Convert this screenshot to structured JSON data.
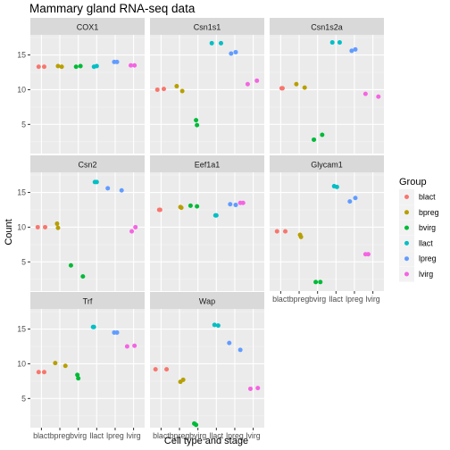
{
  "colors": {
    "blact": "#F8766D",
    "bpreg": "#B79F00",
    "bvirg": "#00BA38",
    "llact": "#00BFC4",
    "lpreg": "#619CFF",
    "lvirg": "#F564E3",
    "panel_bg": "#EBEBEB",
    "strip_bg": "#D9D9D9",
    "grid_major": "#FFFFFF"
  },
  "chart_data": {
    "type": "scatter",
    "title": "Mammary gland RNA-seq data",
    "xlabel": "Cell type and stage",
    "ylabel": "Count",
    "categories": [
      "blact",
      "bpreg",
      "bvirg",
      "llact",
      "lpreg",
      "lvirg"
    ],
    "y_ticks": [
      5,
      10,
      15
    ],
    "ylim": [
      0.8,
      17.9
    ],
    "legend": {
      "title": "Group",
      "position": "right",
      "entries": [
        "blact",
        "bpreg",
        "bvirg",
        "llact",
        "lpreg",
        "lvirg"
      ]
    },
    "grid": true,
    "facets": [
      {
        "name": "COX1",
        "points": [
          {
            "group": "blact",
            "x": 0.85,
            "y": 13.3
          },
          {
            "group": "blact",
            "x": 1.15,
            "y": 13.3
          },
          {
            "group": "bpreg",
            "x": 1.9,
            "y": 13.4
          },
          {
            "group": "bpreg",
            "x": 2.1,
            "y": 13.3
          },
          {
            "group": "bvirg",
            "x": 2.88,
            "y": 13.3
          },
          {
            "group": "bvirg",
            "x": 3.12,
            "y": 13.4
          },
          {
            "group": "llact",
            "x": 3.85,
            "y": 13.3
          },
          {
            "group": "llact",
            "x": 4.0,
            "y": 13.4
          },
          {
            "group": "lpreg",
            "x": 4.95,
            "y": 14.0
          },
          {
            "group": "lpreg",
            "x": 5.1,
            "y": 14.0
          },
          {
            "group": "lvirg",
            "x": 5.85,
            "y": 13.5
          },
          {
            "group": "lvirg",
            "x": 6.05,
            "y": 13.5
          }
        ]
      },
      {
        "name": "Csn1s1",
        "points": [
          {
            "group": "blact",
            "x": 0.8,
            "y": 10.0
          },
          {
            "group": "blact",
            "x": 1.15,
            "y": 10.1
          },
          {
            "group": "bpreg",
            "x": 1.85,
            "y": 10.5
          },
          {
            "group": "bpreg",
            "x": 2.15,
            "y": 9.8
          },
          {
            "group": "bvirg",
            "x": 2.9,
            "y": 5.6
          },
          {
            "group": "bvirg",
            "x": 2.95,
            "y": 4.9
          },
          {
            "group": "llact",
            "x": 3.75,
            "y": 16.7
          },
          {
            "group": "llact",
            "x": 4.25,
            "y": 16.7
          },
          {
            "group": "lpreg",
            "x": 4.8,
            "y": 15.2
          },
          {
            "group": "lpreg",
            "x": 5.05,
            "y": 15.4
          },
          {
            "group": "lvirg",
            "x": 5.7,
            "y": 10.8
          },
          {
            "group": "lvirg",
            "x": 6.2,
            "y": 11.3
          }
        ]
      },
      {
        "name": "Csn1s2a",
        "points": [
          {
            "group": "blact",
            "x": 1.05,
            "y": 10.2
          },
          {
            "group": "blact",
            "x": 1.1,
            "y": 10.2
          },
          {
            "group": "bpreg",
            "x": 1.85,
            "y": 10.8
          },
          {
            "group": "bpreg",
            "x": 2.3,
            "y": 10.3
          },
          {
            "group": "bvirg",
            "x": 2.8,
            "y": 2.8
          },
          {
            "group": "bvirg",
            "x": 3.25,
            "y": 3.5
          },
          {
            "group": "llact",
            "x": 3.8,
            "y": 16.8
          },
          {
            "group": "llact",
            "x": 4.2,
            "y": 16.8
          },
          {
            "group": "lpreg",
            "x": 4.85,
            "y": 15.6
          },
          {
            "group": "lpreg",
            "x": 5.05,
            "y": 15.8
          },
          {
            "group": "lvirg",
            "x": 5.6,
            "y": 9.4
          },
          {
            "group": "lvirg",
            "x": 6.3,
            "y": 9.0
          }
        ]
      },
      {
        "name": "Csn2",
        "points": [
          {
            "group": "blact",
            "x": 0.8,
            "y": 10.0
          },
          {
            "group": "blact",
            "x": 1.2,
            "y": 10.0
          },
          {
            "group": "bpreg",
            "x": 1.85,
            "y": 10.5
          },
          {
            "group": "bpreg",
            "x": 1.9,
            "y": 9.9
          },
          {
            "group": "bvirg",
            "x": 2.6,
            "y": 4.5
          },
          {
            "group": "bvirg",
            "x": 3.25,
            "y": 2.9
          },
          {
            "group": "llact",
            "x": 3.9,
            "y": 16.5
          },
          {
            "group": "llact",
            "x": 4.0,
            "y": 16.5
          },
          {
            "group": "lpreg",
            "x": 4.6,
            "y": 15.6
          },
          {
            "group": "lpreg",
            "x": 5.35,
            "y": 15.3
          },
          {
            "group": "lvirg",
            "x": 5.9,
            "y": 9.4
          },
          {
            "group": "lvirg",
            "x": 6.1,
            "y": 10.0
          }
        ]
      },
      {
        "name": "Eef1a1",
        "points": [
          {
            "group": "blact",
            "x": 0.9,
            "y": 12.5
          },
          {
            "group": "blact",
            "x": 0.95,
            "y": 12.5
          },
          {
            "group": "bpreg",
            "x": 2.05,
            "y": 12.9
          },
          {
            "group": "bpreg",
            "x": 2.1,
            "y": 12.8
          },
          {
            "group": "bvirg",
            "x": 2.6,
            "y": 13.1
          },
          {
            "group": "bvirg",
            "x": 2.95,
            "y": 13.0
          },
          {
            "group": "llact",
            "x": 3.95,
            "y": 11.7
          },
          {
            "group": "llact",
            "x": 4.0,
            "y": 11.7
          },
          {
            "group": "lpreg",
            "x": 4.75,
            "y": 13.3
          },
          {
            "group": "lpreg",
            "x": 5.05,
            "y": 13.2
          },
          {
            "group": "lvirg",
            "x": 5.3,
            "y": 13.5
          },
          {
            "group": "lvirg",
            "x": 5.45,
            "y": 13.5
          }
        ]
      },
      {
        "name": "Glycam1",
        "points": [
          {
            "group": "blact",
            "x": 0.8,
            "y": 9.4
          },
          {
            "group": "blact",
            "x": 1.25,
            "y": 9.4
          },
          {
            "group": "bpreg",
            "x": 2.05,
            "y": 8.9
          },
          {
            "group": "bpreg",
            "x": 2.1,
            "y": 8.6
          },
          {
            "group": "bvirg",
            "x": 2.9,
            "y": 2.1
          },
          {
            "group": "bvirg",
            "x": 3.15,
            "y": 2.1
          },
          {
            "group": "llact",
            "x": 3.9,
            "y": 15.9
          },
          {
            "group": "llact",
            "x": 4.05,
            "y": 15.8
          },
          {
            "group": "lpreg",
            "x": 4.75,
            "y": 13.7
          },
          {
            "group": "lpreg",
            "x": 5.05,
            "y": 14.2
          },
          {
            "group": "lvirg",
            "x": 5.6,
            "y": 6.1
          },
          {
            "group": "lvirg",
            "x": 5.75,
            "y": 6.1
          }
        ]
      },
      {
        "name": "Trf",
        "points": [
          {
            "group": "blact",
            "x": 0.85,
            "y": 8.8
          },
          {
            "group": "blact",
            "x": 1.15,
            "y": 8.8
          },
          {
            "group": "bpreg",
            "x": 1.75,
            "y": 10.1
          },
          {
            "group": "bpreg",
            "x": 2.3,
            "y": 9.7
          },
          {
            "group": "bvirg",
            "x": 2.95,
            "y": 8.4
          },
          {
            "group": "bvirg",
            "x": 3.0,
            "y": 7.9
          },
          {
            "group": "llact",
            "x": 3.8,
            "y": 15.3
          },
          {
            "group": "llact",
            "x": 3.85,
            "y": 15.3
          },
          {
            "group": "lpreg",
            "x": 4.95,
            "y": 14.5
          },
          {
            "group": "lpreg",
            "x": 5.1,
            "y": 14.5
          },
          {
            "group": "lvirg",
            "x": 5.65,
            "y": 12.5
          },
          {
            "group": "lvirg",
            "x": 6.05,
            "y": 12.6
          }
        ]
      },
      {
        "name": "Wap",
        "points": [
          {
            "group": "blact",
            "x": 0.7,
            "y": 9.2
          },
          {
            "group": "blact",
            "x": 1.3,
            "y": 9.2
          },
          {
            "group": "bpreg",
            "x": 2.05,
            "y": 7.4
          },
          {
            "group": "bpreg",
            "x": 2.2,
            "y": 7.7
          },
          {
            "group": "bvirg",
            "x": 2.8,
            "y": 1.4
          },
          {
            "group": "bvirg",
            "x": 2.9,
            "y": 1.2
          },
          {
            "group": "llact",
            "x": 3.9,
            "y": 15.6
          },
          {
            "group": "llact",
            "x": 4.1,
            "y": 15.5
          },
          {
            "group": "lpreg",
            "x": 4.7,
            "y": 13.0
          },
          {
            "group": "lpreg",
            "x": 5.3,
            "y": 12.0
          },
          {
            "group": "lvirg",
            "x": 5.85,
            "y": 6.4
          },
          {
            "group": "lvirg",
            "x": 6.25,
            "y": 6.5
          }
        ]
      }
    ]
  }
}
